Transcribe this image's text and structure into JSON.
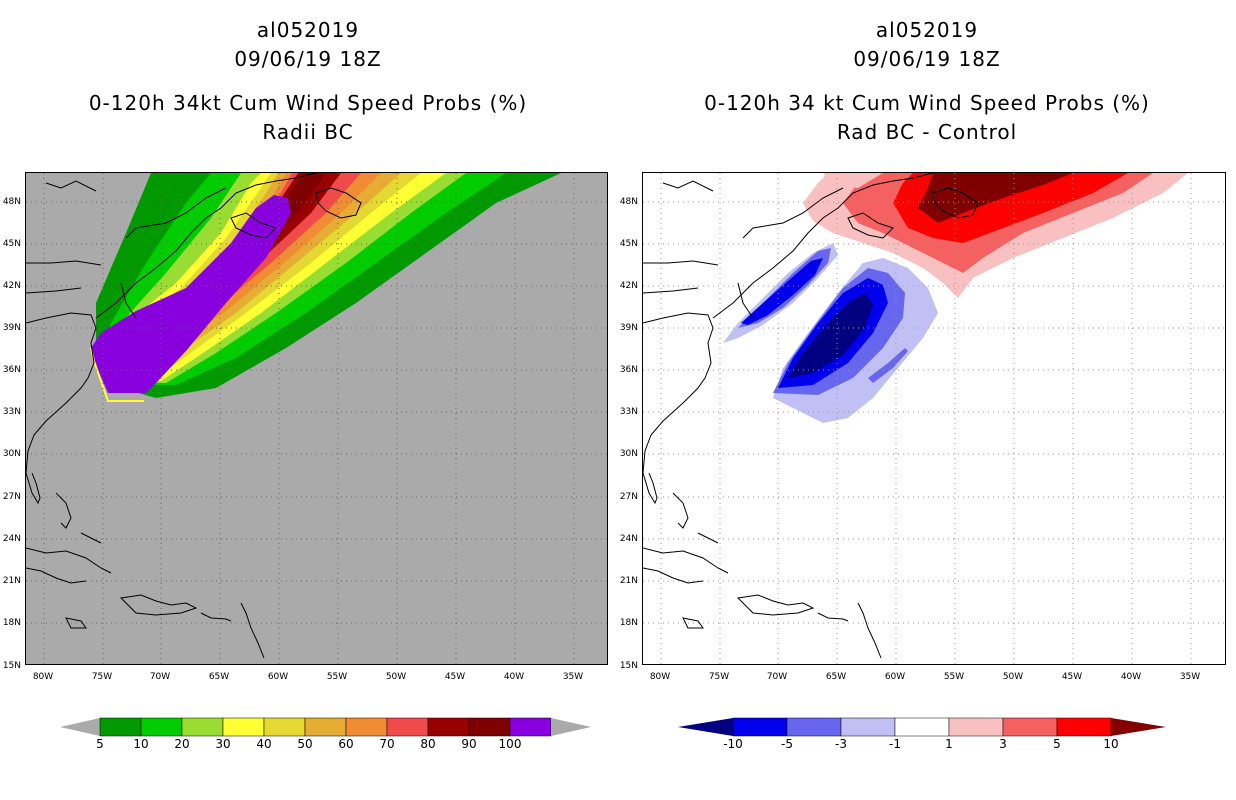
{
  "left_panel": {
    "title_lines": [
      "al052019",
      "09/06/19 18Z",
      "0-120h 34kt Cum Wind Speed Probs (%)",
      "Radii BC"
    ],
    "colorbar": {
      "labels": [
        "5",
        "10",
        "20",
        "30",
        "40",
        "50",
        "60",
        "70",
        "80",
        "90",
        "100"
      ],
      "colors": [
        "#009900",
        "#00cc00",
        "#99dd33",
        "#ffff33",
        "#e6d833",
        "#e6ac33",
        "#f08c33",
        "#f04a4a",
        "#990000",
        "#7f0000",
        "#8800dd"
      ]
    }
  },
  "right_panel": {
    "title_lines": [
      "al052019",
      "09/06/19 18Z",
      "0-120h 34 kt Cum Wind Speed Probs (%)",
      "Rad BC - Control"
    ],
    "colorbar": {
      "labels": [
        "-10",
        "-5",
        "-3",
        "-1",
        "1",
        "3",
        "5",
        "10"
      ],
      "colors": [
        "#000080",
        "#0000ee",
        "#6666ee",
        "#c0c0f4",
        "#ffffff",
        "#f8c0c0",
        "#f56060",
        "#ff0000",
        "#800000"
      ]
    }
  },
  "axes": {
    "lon_labels": [
      "80W",
      "75W",
      "70W",
      "65W",
      "60W",
      "55W",
      "50W",
      "45W",
      "40W",
      "35W"
    ],
    "lat_labels": [
      "48N",
      "45N",
      "42N",
      "39N",
      "36N",
      "33N",
      "30N",
      "27N",
      "24N",
      "21N",
      "18N",
      "15N"
    ]
  },
  "map_data": {
    "region": {
      "lon_min": -81.5,
      "lon_max": -32,
      "lat_min": 15,
      "lat_max": 50
    }
  }
}
